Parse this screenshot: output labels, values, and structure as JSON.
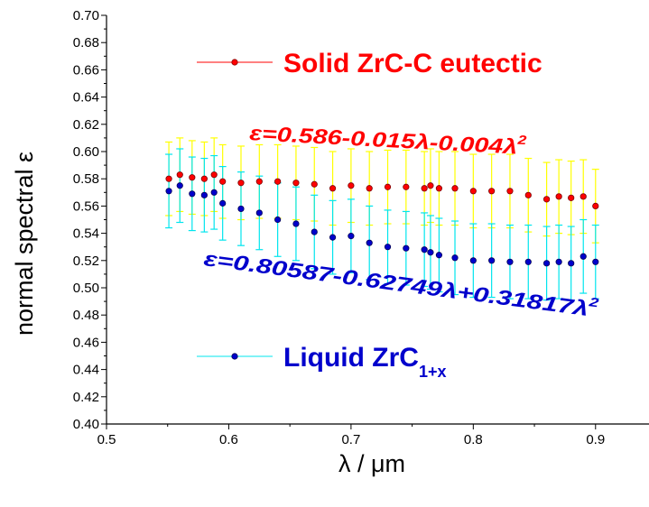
{
  "chart_data": {
    "type": "scatter",
    "xlabel": "λ / μm",
    "ylabel": "normal spectral ε",
    "xlim": [
      0.5,
      0.95
    ],
    "ylim": [
      0.4,
      0.7
    ],
    "x_ticks": [
      "0.5",
      "0.6",
      "0.7",
      "0.8",
      "0.9"
    ],
    "x_tick_values": [
      0.5,
      0.6,
      0.7,
      0.8,
      0.9
    ],
    "y_ticks": [
      "0.40",
      "0.42",
      "0.44",
      "0.46",
      "0.48",
      "0.50",
      "0.52",
      "0.54",
      "0.56",
      "0.58",
      "0.60",
      "0.62",
      "0.64",
      "0.66",
      "0.68",
      "0.70"
    ],
    "y_tick_values": [
      0.4,
      0.42,
      0.44,
      0.46,
      0.48,
      0.5,
      0.52,
      0.54,
      0.56,
      0.58,
      0.6,
      0.62,
      0.64,
      0.66,
      0.68,
      0.7
    ],
    "grid": false,
    "series": [
      {
        "name": "Solid ZrC-C eutectic",
        "color": "#ff0000",
        "errorbar_color": "#ffff00",
        "error": 0.027,
        "x": [
          0.551,
          0.56,
          0.57,
          0.58,
          0.588,
          0.595,
          0.61,
          0.625,
          0.64,
          0.655,
          0.67,
          0.685,
          0.7,
          0.715,
          0.73,
          0.745,
          0.76,
          0.765,
          0.772,
          0.785,
          0.8,
          0.815,
          0.83,
          0.845,
          0.86,
          0.87,
          0.88,
          0.89,
          0.9
        ],
        "y": [
          0.58,
          0.583,
          0.581,
          0.58,
          0.583,
          0.578,
          0.577,
          0.578,
          0.578,
          0.577,
          0.576,
          0.573,
          0.575,
          0.573,
          0.574,
          0.574,
          0.573,
          0.575,
          0.573,
          0.573,
          0.571,
          0.571,
          0.571,
          0.568,
          0.565,
          0.567,
          0.566,
          0.567,
          0.56
        ]
      },
      {
        "name": "Liquid ZrC",
        "name_subscript": "1+x",
        "color": "#0000cc",
        "errorbar_color": "#00e5ee",
        "error": 0.027,
        "x": [
          0.551,
          0.56,
          0.57,
          0.58,
          0.588,
          0.595,
          0.61,
          0.625,
          0.64,
          0.655,
          0.67,
          0.685,
          0.7,
          0.715,
          0.73,
          0.745,
          0.76,
          0.765,
          0.772,
          0.785,
          0.8,
          0.815,
          0.83,
          0.845,
          0.86,
          0.87,
          0.88,
          0.89,
          0.9
        ],
        "y": [
          0.571,
          0.575,
          0.569,
          0.568,
          0.57,
          0.562,
          0.558,
          0.555,
          0.55,
          0.547,
          0.541,
          0.537,
          0.538,
          0.533,
          0.53,
          0.529,
          0.528,
          0.526,
          0.524,
          0.522,
          0.52,
          0.52,
          0.519,
          0.519,
          0.518,
          0.519,
          0.518,
          0.523,
          0.519
        ]
      }
    ],
    "annotations": [
      {
        "text": "ε=0.586-0.015λ-0.004λ",
        "superscript": "2",
        "color": "#ff0000"
      },
      {
        "text": "ε=0.80587-0.62749λ+0.31817λ",
        "superscript": "2",
        "color": "#0000cc"
      }
    ],
    "legend_placement": "inside, top and bottom"
  }
}
